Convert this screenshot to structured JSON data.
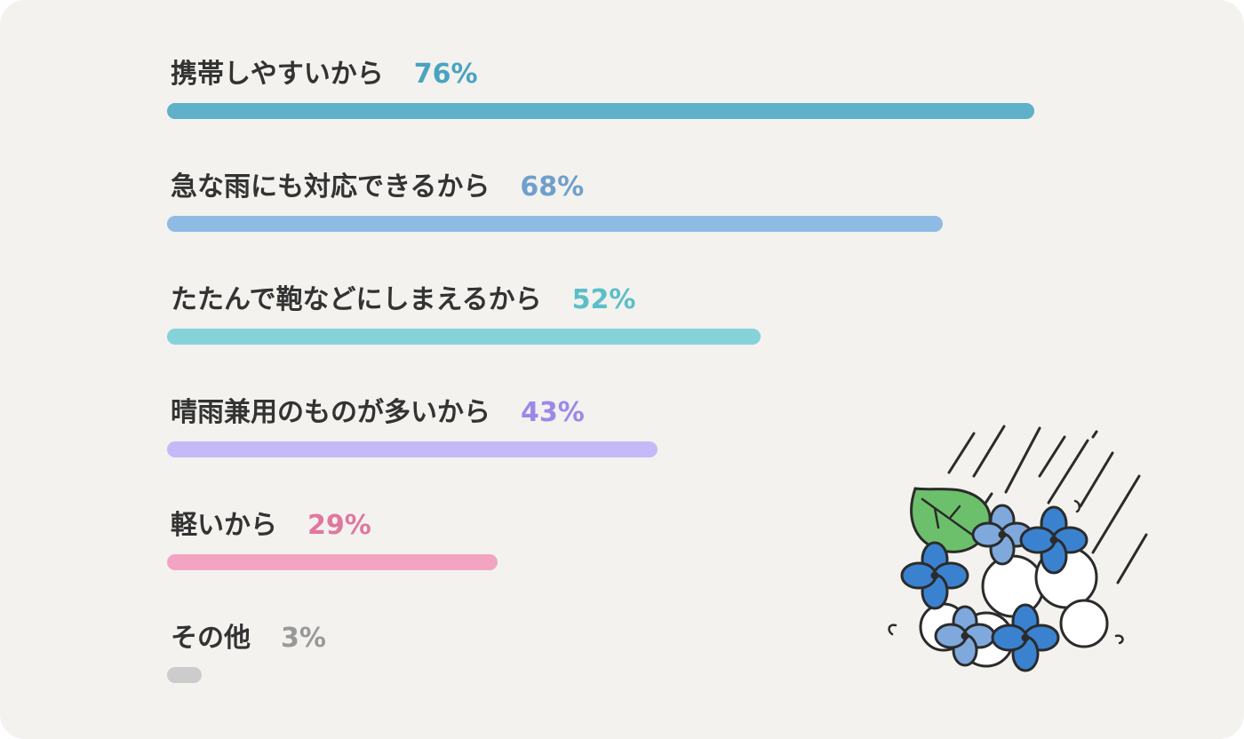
{
  "chart_data": {
    "type": "bar",
    "orientation": "horizontal",
    "categories": [
      "携帯しやすいから",
      "急な雨にも対応できるから",
      "たたんで鞄などにしまえるから",
      "晴雨兼用のものが多いから",
      "軽いから",
      "その他"
    ],
    "values": [
      76,
      68,
      52,
      43,
      29,
      3
    ],
    "value_labels": [
      "76%",
      "68%",
      "52%",
      "43%",
      "29%",
      "3%"
    ],
    "unit": "%",
    "xlim": [
      0,
      100
    ],
    "grid": false,
    "colors": [
      "#5fb0c9",
      "#8dbbe4",
      "#86d2d9",
      "#c6b9f7",
      "#f3a4c3",
      "#cccccc"
    ],
    "label_colors": [
      "#4aa3c0",
      "#6f9fcc",
      "#5bbfc9",
      "#9a89e8",
      "#e0779f",
      "#999999"
    ]
  },
  "illustration": {
    "icon": "hydrangea-rain-icon"
  }
}
